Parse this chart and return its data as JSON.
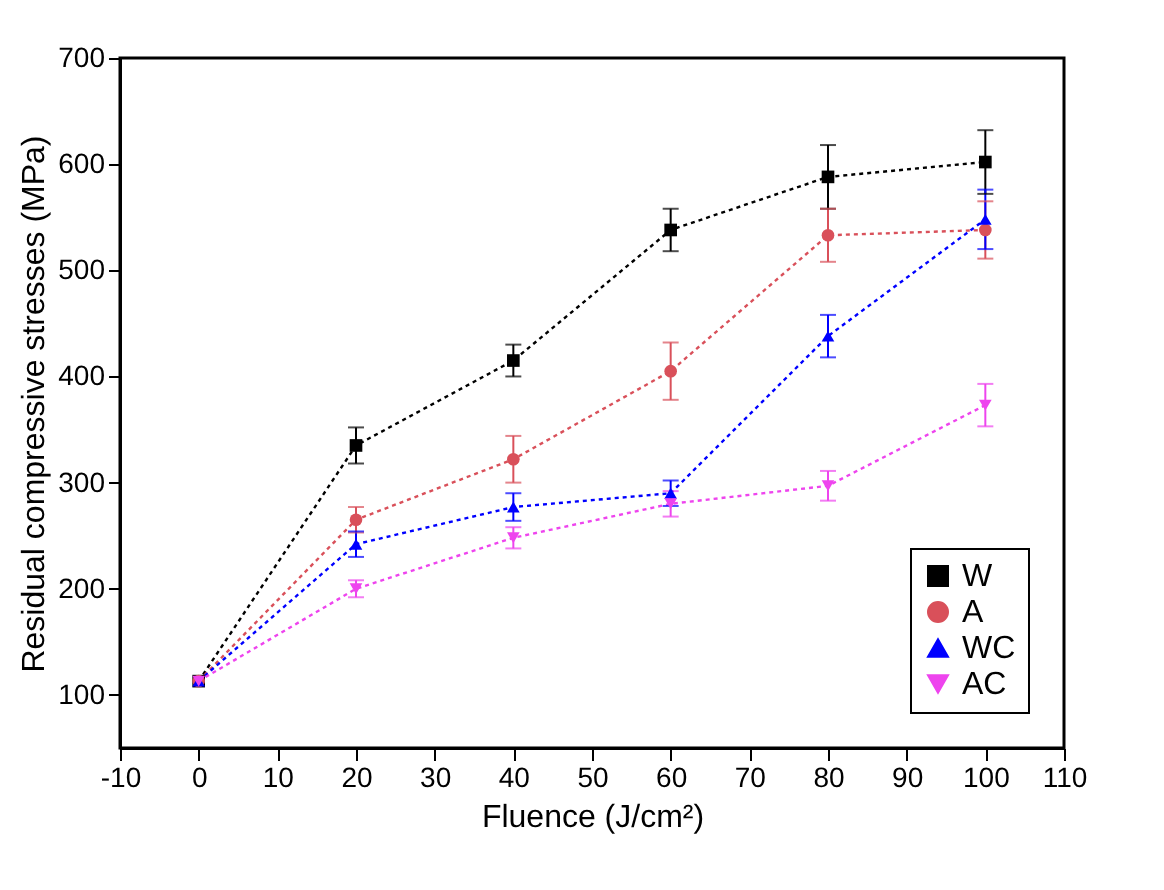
{
  "chart_data": {
    "type": "line",
    "xlabel": "Fluence (J/cm²)",
    "ylabel": "Residual compressive stresses (MPa)",
    "x": [
      0,
      20,
      40,
      60,
      80,
      100
    ],
    "xlim": [
      -10,
      110
    ],
    "xticks": [
      -10,
      0,
      10,
      20,
      30,
      40,
      50,
      60,
      70,
      80,
      90,
      100,
      110
    ],
    "ylim": [
      50,
      700
    ],
    "yticks": [
      100,
      200,
      300,
      400,
      500,
      600,
      700
    ],
    "grid": false,
    "legend": "bottom right",
    "line_style": "dotted",
    "series": [
      {
        "name": "W",
        "color": "#000000",
        "marker": "square",
        "values": [
          113,
          335,
          415,
          538,
          588,
          602
        ],
        "errors": [
          null,
          17,
          15,
          20,
          30,
          30
        ]
      },
      {
        "name": "A",
        "color": "#d9505a",
        "marker": "circle",
        "values": [
          113,
          265,
          322,
          405,
          533,
          538
        ],
        "errors": [
          null,
          12,
          22,
          27,
          25,
          27
        ]
      },
      {
        "name": "WC",
        "color": "#0000ff",
        "marker": "triangle",
        "values": [
          113,
          242,
          277,
          290,
          438,
          548
        ],
        "errors": [
          null,
          12,
          13,
          12,
          20,
          28
        ]
      },
      {
        "name": "AC",
        "color": "#ee44ee",
        "marker": "triangle-down",
        "values": [
          113,
          200,
          248,
          280,
          297,
          373
        ],
        "errors": [
          null,
          8,
          10,
          12,
          14,
          20
        ]
      }
    ]
  }
}
